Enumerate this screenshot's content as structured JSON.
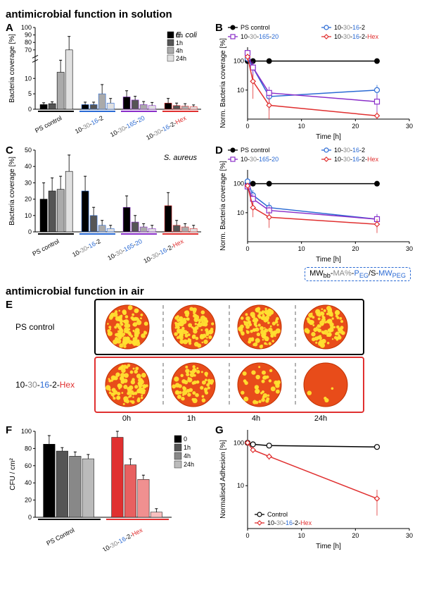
{
  "sectionTitles": {
    "solution": "antimicrobial function in solution",
    "air": "antimicrobial function in air"
  },
  "panelLabels": {
    "A": "A",
    "B": "B",
    "C": "C",
    "D": "D",
    "E": "E",
    "F": "F",
    "G": "G"
  },
  "common": {
    "timeLegend": [
      "0h",
      "1h",
      "4h",
      "24h"
    ],
    "greyShades": [
      "#000000",
      "#555555",
      "#aaaaaa",
      "#e0e0e0"
    ],
    "groupColors": {
      "PS": "#000000",
      "g1": "#2a6ad4",
      "g2": "#8a2ec9",
      "g3": "#e03030"
    },
    "formula": "MW_bb-MA%-P_EG/S-MW_PEG"
  },
  "A": {
    "title": "E. coli",
    "ylabel": "Bacteria coverage [%]",
    "ylim": [
      0,
      100
    ],
    "breakLow": 15,
    "breakHigh": 60,
    "yticksLow": [
      0,
      5,
      10
    ],
    "yticksHigh": [
      70,
      80,
      90,
      100
    ],
    "groups": [
      "PS control",
      "10-30-16-2",
      "10-30-165-20",
      "10-30-16-2-Hex"
    ],
    "data": [
      [
        1.5,
        1.8,
        12,
        70
      ],
      [
        1.5,
        1.5,
        5,
        2
      ],
      [
        4,
        3,
        1.5,
        1.2
      ],
      [
        2,
        1.2,
        1,
        0.8
      ]
    ],
    "err": [
      [
        0.6,
        0.6,
        4,
        18
      ],
      [
        0.8,
        0.8,
        3,
        1.5
      ],
      [
        2,
        1.2,
        1,
        1
      ],
      [
        1.5,
        0.8,
        0.8,
        0.6
      ]
    ]
  },
  "C": {
    "title": "S. aureus",
    "ylabel": "Bacteria coverage [%]",
    "ylim": [
      0,
      50
    ],
    "yticks": [
      0,
      10,
      20,
      30,
      40,
      50
    ],
    "groups": [
      "PS control",
      "10-30-16-2",
      "10-30-165-20",
      "10-30-16-2-Hex"
    ],
    "data": [
      [
        20,
        25,
        26,
        37
      ],
      [
        25,
        10,
        4,
        2
      ],
      [
        15,
        6,
        3,
        2
      ],
      [
        16,
        4,
        3,
        2
      ]
    ],
    "err": [
      [
        10,
        8,
        8,
        10
      ],
      [
        9,
        5,
        3,
        2
      ],
      [
        7,
        4,
        2,
        2
      ],
      [
        8,
        3,
        2,
        2
      ]
    ]
  },
  "B": {
    "ylabel": "Norm. Bacteria coverage [%]",
    "xlabel": "Time [h]",
    "xlim": [
      0,
      30
    ],
    "xticks": [
      0,
      10,
      20,
      30
    ],
    "ylim": [
      1,
      300
    ],
    "yticks": [
      10,
      100
    ],
    "series": [
      {
        "name": "PS control",
        "color": "#000000",
        "marker": "filled-circle",
        "pts": [
          [
            0,
            100
          ],
          [
            1,
            100
          ],
          [
            4,
            100
          ],
          [
            24,
            100
          ]
        ],
        "err": [
          0,
          0,
          0,
          0
        ]
      },
      {
        "name": "10-30-16-2",
        "color": "#2a6ad4",
        "marker": "open-circle",
        "pts": [
          [
            0,
            120
          ],
          [
            1,
            60
          ],
          [
            4,
            6
          ],
          [
            24,
            10
          ]
        ],
        "err": [
          30,
          30,
          4,
          5
        ]
      },
      {
        "name": "10-30-165-20",
        "color": "#8a2ec9",
        "marker": "open-square",
        "pts": [
          [
            0,
            190
          ],
          [
            1,
            60
          ],
          [
            4,
            8
          ],
          [
            24,
            4
          ]
        ],
        "err": [
          40,
          40,
          5,
          3
        ]
      },
      {
        "name": "10-30-16-2-Hex",
        "color": "#e03030",
        "marker": "open-diamond",
        "pts": [
          [
            0,
            140
          ],
          [
            1,
            20
          ],
          [
            4,
            3
          ],
          [
            24,
            1.3
          ]
        ],
        "err": [
          40,
          15,
          2,
          0.5
        ]
      }
    ]
  },
  "D": {
    "ylabel": "Norm. Bacteria coverage [%]",
    "xlabel": "Time [h]",
    "xlim": [
      0,
      30
    ],
    "xticks": [
      0,
      10,
      20,
      30
    ],
    "ylim": [
      1,
      300
    ],
    "yticks": [
      10,
      100
    ],
    "series": [
      {
        "name": "PS control",
        "color": "#000000",
        "marker": "filled-circle",
        "pts": [
          [
            0,
            100
          ],
          [
            1,
            100
          ],
          [
            4,
            100
          ],
          [
            24,
            100
          ]
        ],
        "err": [
          0,
          0,
          0,
          0
        ]
      },
      {
        "name": "10-30-16-2",
        "color": "#2a6ad4",
        "marker": "open-circle",
        "pts": [
          [
            0,
            120
          ],
          [
            1,
            40
          ],
          [
            4,
            15
          ],
          [
            24,
            6
          ]
        ],
        "err": [
          20,
          20,
          8,
          3
        ]
      },
      {
        "name": "10-30-165-20",
        "color": "#8a2ec9",
        "marker": "open-square",
        "pts": [
          [
            0,
            80
          ],
          [
            1,
            30
          ],
          [
            4,
            12
          ],
          [
            24,
            6
          ]
        ],
        "err": [
          15,
          15,
          6,
          3
        ]
      },
      {
        "name": "10-30-16-2-Hex",
        "color": "#e03030",
        "marker": "open-diamond",
        "pts": [
          [
            0,
            85
          ],
          [
            1,
            15
          ],
          [
            4,
            7
          ],
          [
            24,
            4
          ]
        ],
        "err": [
          15,
          8,
          4,
          2
        ]
      }
    ]
  },
  "E": {
    "rows": [
      {
        "label": "PS control",
        "boxColor": "#000000",
        "densities": [
          0.85,
          0.85,
          0.85,
          0.85
        ]
      },
      {
        "label": "10-30-16-2-Hex",
        "boxColor": "#e03030",
        "densities": [
          0.8,
          0.5,
          0.3,
          0.03
        ]
      }
    ],
    "times": [
      "0h",
      "1h",
      "4h",
      "24h"
    ],
    "dishBg": "#e84c1a",
    "colonyColor": "#ffe030"
  },
  "F": {
    "ylabel": "CFU / cm²",
    "ylim": [
      0,
      100
    ],
    "yticks": [
      0,
      20,
      40,
      60,
      80,
      100
    ],
    "groups": [
      "PS Control",
      "10-30-16-2-Hex"
    ],
    "shades": [
      [
        "#000000",
        "#555555",
        "#888888",
        "#bbbbbb"
      ],
      [
        "#e03030",
        "#e86060",
        "#f09090",
        "#f8c0c0"
      ]
    ],
    "data": [
      [
        85,
        77,
        71,
        68
      ],
      [
        93,
        61,
        44,
        6
      ]
    ],
    "err": [
      [
        10,
        4,
        5,
        5
      ],
      [
        7,
        7,
        5,
        4
      ]
    ],
    "legend": [
      "0",
      "1h",
      "4h",
      "24h"
    ]
  },
  "G": {
    "ylabel": "Normalised  Adhesion [%]",
    "xlabel": "Time [h]",
    "xlim": [
      0,
      30
    ],
    "xticks": [
      0,
      10,
      20,
      30
    ],
    "ylim": [
      1,
      200
    ],
    "yticks": [
      10,
      100
    ],
    "series": [
      {
        "name": "Control",
        "color": "#000000",
        "marker": "open-circle",
        "pts": [
          [
            0,
            100
          ],
          [
            1,
            92
          ],
          [
            4,
            86
          ],
          [
            24,
            80
          ]
        ],
        "err": [
          0,
          3,
          3,
          4
        ]
      },
      {
        "name": "10-30-16-2-Hex",
        "color": "#e03030",
        "marker": "open-diamond",
        "pts": [
          [
            0,
            100
          ],
          [
            1,
            68
          ],
          [
            4,
            48
          ],
          [
            24,
            5
          ]
        ],
        "err": [
          0,
          10,
          8,
          3
        ]
      }
    ]
  }
}
